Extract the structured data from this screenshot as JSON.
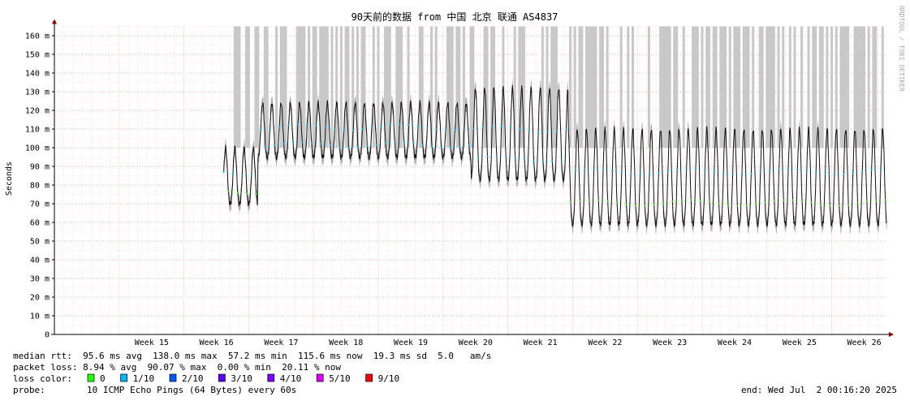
{
  "chart_data": {
    "type": "line",
    "title": "90天前的数据 from 中国 北京 联通 AS4837",
    "ylabel": "Seconds",
    "watermark": "RRDTOOL / TOBI OETIKER",
    "ylim": [
      0,
      165
    ],
    "y_ticks": [
      {
        "v": 0,
        "label": "0"
      },
      {
        "v": 10,
        "label": "10 m"
      },
      {
        "v": 20,
        "label": "20 m"
      },
      {
        "v": 30,
        "label": "30 m"
      },
      {
        "v": 40,
        "label": "40 m"
      },
      {
        "v": 50,
        "label": "50 m"
      },
      {
        "v": 60,
        "label": "60 m"
      },
      {
        "v": 70,
        "label": "70 m"
      },
      {
        "v": 80,
        "label": "80 m"
      },
      {
        "v": 90,
        "label": "90 m"
      },
      {
        "v": 100,
        "label": "100 m"
      },
      {
        "v": 110,
        "label": "110 m"
      },
      {
        "v": 120,
        "label": "120 m"
      },
      {
        "v": 130,
        "label": "130 m"
      },
      {
        "v": 140,
        "label": "140 m"
      },
      {
        "v": 150,
        "label": "150 m"
      },
      {
        "v": 160,
        "label": "160 m"
      }
    ],
    "x_range": [
      0,
      90
    ],
    "x_ticks": [
      {
        "day": 7,
        "label": "Week 15"
      },
      {
        "day": 14,
        "label": "Week 16"
      },
      {
        "day": 21,
        "label": "Week 17"
      },
      {
        "day": 28,
        "label": "Week 18"
      },
      {
        "day": 35,
        "label": "Week 19"
      },
      {
        "day": 42,
        "label": "Week 20"
      },
      {
        "day": 49,
        "label": "Week 21"
      },
      {
        "day": 56,
        "label": "Week 22"
      },
      {
        "day": 63,
        "label": "Week 23"
      },
      {
        "day": 70,
        "label": "Week 24"
      },
      {
        "day": 77,
        "label": "Week 25"
      },
      {
        "day": 84,
        "label": "Week 26"
      }
    ],
    "segments": [
      {
        "start": 18.3,
        "end": 22.0,
        "low": 70,
        "high": 100
      },
      {
        "start": 22.0,
        "end": 45.0,
        "low": 95,
        "high": 124
      },
      {
        "start": 45.0,
        "end": 55.5,
        "low": 83,
        "high": 132
      },
      {
        "start": 55.5,
        "end": 90.0,
        "low": 59,
        "high": 110
      }
    ],
    "legend": {
      "median_rtt": "median rtt:  95.6 ms avg  138.0 ms max  57.2 ms min  115.6 ms now  19.3 ms sd  5.0   am/s",
      "packet_loss": "packet loss: 8.94 % avg  90.07 % max  0.00 % min  20.11 % now",
      "loss_color_label": "loss color:",
      "loss_colors": [
        {
          "label": "0",
          "color": "#26ff00"
        },
        {
          "label": "1/10",
          "color": "#00b8ff"
        },
        {
          "label": "2/10",
          "color": "#0059ff"
        },
        {
          "label": "3/10",
          "color": "#5e00ff"
        },
        {
          "label": "4/10",
          "color": "#7e00ff"
        },
        {
          "label": "5/10",
          "color": "#dd00ff"
        },
        {
          "label": "9/10",
          "color": "#ff0000"
        }
      ],
      "probe_label": "probe:",
      "probe": "10 ICMP Echo Pings (64 Bytes) every 60s",
      "end": "end: Wed Jul  2 00:16:20 2025"
    }
  }
}
